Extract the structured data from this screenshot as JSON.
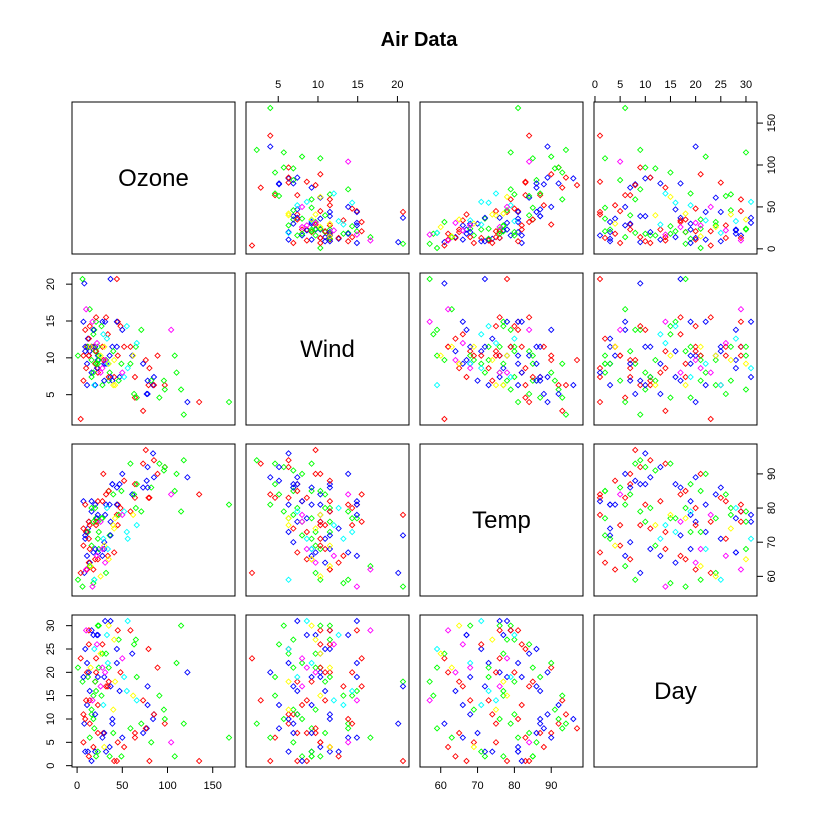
{
  "chart_data": {
    "type": "scatter",
    "title": "Air Data",
    "variables": [
      "Ozone",
      "Wind",
      "Temp",
      "Day"
    ],
    "ranges": {
      "Ozone": [
        1,
        168
      ],
      "Wind": [
        1.7,
        20.7
      ],
      "Temp": [
        56,
        97
      ],
      "Day": [
        1,
        31
      ]
    },
    "ticks": {
      "Ozone": [
        0,
        50,
        100,
        150
      ],
      "Wind": [
        5,
        10,
        15,
        20
      ],
      "Temp": [
        60,
        70,
        80,
        90
      ],
      "Day": [
        0,
        5,
        10,
        15,
        20,
        25,
        30
      ]
    },
    "colors": [
      "#FF0000",
      "#FFFF00",
      "#00FF00",
      "#00FFFF",
      "#0000FF",
      "#FF00FF"
    ],
    "grid": false,
    "legend": "none",
    "marker": "diamond",
    "observations": [
      [
        41,
        7.4,
        67,
        1,
        0
      ],
      [
        36,
        8,
        72,
        2,
        2
      ],
      [
        12,
        12.6,
        74,
        3,
        4
      ],
      [
        18,
        11.5,
        62,
        4,
        0
      ],
      [
        28,
        14.9,
        66,
        6,
        4
      ],
      [
        23,
        8.6,
        65,
        7,
        0
      ],
      [
        19,
        13.8,
        59,
        8,
        2
      ],
      [
        8,
        20.1,
        61,
        9,
        4
      ],
      [
        7,
        6.9,
        74,
        11,
        0
      ],
      [
        16,
        9.7,
        69,
        12,
        2
      ],
      [
        11,
        9.2,
        66,
        13,
        4
      ],
      [
        14,
        10.9,
        68,
        14,
        0
      ],
      [
        18,
        13.2,
        58,
        15,
        2
      ],
      [
        14,
        10.9,
        64,
        16,
        4
      ],
      [
        34,
        13.2,
        66,
        17,
        0
      ],
      [
        6,
        20.7,
        57,
        18,
        2
      ],
      [
        30,
        9.2,
        68,
        19,
        4
      ],
      [
        11,
        11.5,
        62,
        20,
        0
      ],
      [
        1,
        10.3,
        59,
        21,
        2
      ],
      [
        11,
        6.3,
        73,
        22,
        4
      ],
      [
        4,
        1.7,
        61,
        23,
        0
      ],
      [
        32,
        9.7,
        61,
        24,
        2
      ],
      [
        23,
        9.7,
        67,
        28,
        4
      ],
      [
        45,
        14.9,
        81,
        29,
        0
      ],
      [
        115,
        5.7,
        79,
        30,
        2
      ],
      [
        37,
        7.4,
        76,
        31,
        4
      ],
      [
        29,
        9.7,
        90,
        7,
        0
      ],
      [
        71,
        13.8,
        79,
        9,
        2
      ],
      [
        39,
        11.5,
        87,
        10,
        4
      ],
      [
        23,
        8,
        82,
        13,
        0
      ],
      [
        21,
        14.9,
        77,
        16,
        2
      ],
      [
        37,
        20.7,
        72,
        17,
        4
      ],
      [
        20,
        9.2,
        65,
        18,
        0
      ],
      [
        12,
        11.5,
        73,
        19,
        2
      ],
      [
        13,
        10.3,
        76,
        20,
        4
      ],
      [
        135,
        4,
        84,
        1,
        0
      ],
      [
        49,
        9.2,
        85,
        2,
        2
      ],
      [
        32,
        9.2,
        81,
        3,
        4
      ],
      [
        64,
        4.6,
        83,
        6,
        0
      ],
      [
        40,
        10.9,
        84,
        7,
        2
      ],
      [
        77,
        5.1,
        88,
        8,
        4
      ],
      [
        97,
        6.3,
        92,
        9,
        0
      ],
      [
        97,
        5.7,
        92,
        10,
        2
      ],
      [
        85,
        7.4,
        89,
        11,
        4
      ],
      [
        10,
        8.6,
        73,
        14,
        0
      ],
      [
        27,
        14.3,
        77,
        15,
        2
      ],
      [
        7,
        14.9,
        82,
        19,
        4
      ],
      [
        48,
        14.3,
        80,
        20,
        0
      ],
      [
        35,
        6.9,
        85,
        21,
        2
      ],
      [
        61,
        10.3,
        84,
        24,
        4
      ],
      [
        79,
        6.3,
        83,
        25,
        0
      ],
      [
        63,
        5.1,
        84,
        26,
        2
      ],
      [
        16,
        11.5,
        79,
        29,
        4
      ],
      [
        80,
        8.6,
        83,
        1,
        0
      ],
      [
        108,
        10.3,
        85,
        2,
        2
      ],
      [
        20,
        6.3,
        81,
        3,
        4
      ],
      [
        52,
        11.5,
        88,
        4,
        0
      ],
      [
        82,
        6.9,
        86,
        5,
        2
      ],
      [
        50,
        13.8,
        90,
        6,
        4
      ],
      [
        64,
        7.4,
        87,
        7,
        0
      ],
      [
        59,
        9.2,
        93,
        8,
        2
      ],
      [
        39,
        6.9,
        87,
        9,
        4
      ],
      [
        9,
        13.8,
        81,
        10,
        0
      ],
      [
        16,
        7.4,
        80,
        11,
        2
      ],
      [
        78,
        6.9,
        86,
        17,
        4
      ],
      [
        35,
        7.4,
        85,
        18,
        0
      ],
      [
        66,
        4.6,
        87,
        19,
        2
      ],
      [
        122,
        4,
        89,
        20,
        4
      ],
      [
        89,
        10.3,
        90,
        21,
        0
      ],
      [
        110,
        8,
        90,
        22,
        2
      ],
      [
        44,
        11.5,
        86,
        25,
        4
      ],
      [
        28,
        11.5,
        82,
        26,
        0
      ],
      [
        65,
        11.5,
        80,
        27,
        2
      ],
      [
        22,
        8.6,
        77,
        28,
        4
      ],
      [
        59,
        11.5,
        79,
        29,
        0
      ],
      [
        23,
        11.5,
        76,
        30,
        2
      ],
      [
        31,
        14.9,
        78,
        31,
        4
      ],
      [
        44,
        20.7,
        78,
        1,
        0
      ],
      [
        21,
        9.2,
        77,
        2,
        2
      ],
      [
        9,
        11.5,
        72,
        3,
        4
      ],
      [
        45,
        10.3,
        75,
        5,
        0
      ],
      [
        168,
        4,
        81,
        6,
        2
      ],
      [
        73,
        9.2,
        86,
        7,
        4
      ],
      [
        76,
        9.7,
        97,
        8,
        0
      ],
      [
        118,
        2.3,
        94,
        9,
        2
      ],
      [
        84,
        6.3,
        96,
        10,
        4
      ],
      [
        85,
        6.3,
        94,
        11,
        0
      ],
      [
        96,
        6.9,
        91,
        12,
        2
      ],
      [
        78,
        5.1,
        92,
        13,
        4
      ],
      [
        73,
        2.8,
        93,
        14,
        0
      ],
      [
        91,
        4.6,
        93,
        15,
        2
      ],
      [
        47,
        7.4,
        87,
        16,
        4
      ],
      [
        32,
        15.5,
        84,
        17,
        0
      ],
      [
        20,
        10.9,
        80,
        18,
        2
      ],
      [
        23,
        10.3,
        78,
        19,
        4
      ],
      [
        21,
        10.9,
        75,
        20,
        0
      ],
      [
        24,
        9.7,
        73,
        21,
        2
      ],
      [
        44,
        14.9,
        81,
        22,
        4
      ],
      [
        21,
        15.5,
        76,
        23,
        0
      ],
      [
        28,
        6.3,
        77,
        24,
        2
      ],
      [
        9,
        10.9,
        71,
        25,
        4
      ],
      [
        13,
        10.3,
        71,
        26,
        0
      ],
      [
        46,
        6.9,
        78,
        27,
        2
      ],
      [
        18,
        13.8,
        67,
        28,
        4
      ],
      [
        13,
        10.3,
        76,
        29,
        0
      ],
      [
        24,
        10.3,
        68,
        30,
        2
      ],
      [
        16,
        8,
        82,
        1,
        4
      ],
      [
        13,
        12.6,
        64,
        2,
        0
      ],
      [
        23,
        9.2,
        71,
        3,
        2
      ],
      [
        36,
        10.3,
        81,
        4,
        4
      ],
      [
        7,
        10.3,
        69,
        5,
        0
      ],
      [
        14,
        16.6,
        63,
        6,
        2
      ],
      [
        30,
        6.9,
        70,
        7,
        4
      ],
      [
        14,
        14.3,
        75,
        9,
        0
      ],
      [
        18,
        8,
        76,
        10,
        2
      ],
      [
        20,
        11.5,
        68,
        11,
        4
      ],
      [
        40,
        6.3,
        75,
        12,
        1
      ],
      [
        29,
        13.2,
        71,
        13,
        3
      ],
      [
        17,
        14.9,
        57,
        14,
        5
      ],
      [
        62,
        10.3,
        78,
        15,
        1
      ],
      [
        55,
        14.3,
        73,
        16,
        3
      ],
      [
        26,
        8,
        76,
        17,
        5
      ],
      [
        42,
        6.3,
        77,
        18,
        1
      ],
      [
        52,
        7.4,
        79,
        19,
        3
      ],
      [
        31,
        9.7,
        64,
        20,
        5
      ],
      [
        15,
        11.5,
        63,
        21,
        1
      ],
      [
        34,
        9.2,
        68,
        22,
        3
      ],
      [
        50,
        8,
        78,
        23,
        5
      ],
      [
        26,
        10.3,
        60,
        24,
        1
      ],
      [
        19,
        6.3,
        59,
        25,
        3
      ],
      [
        22,
        12,
        66,
        26,
        5
      ],
      [
        41,
        9.7,
        74,
        27,
        1
      ],
      [
        33,
        12.6,
        80,
        28,
        3
      ],
      [
        10,
        16.6,
        62,
        29,
        5
      ],
      [
        35,
        9.2,
        65,
        30,
        1
      ],
      [
        56,
        8.6,
        71,
        31,
        3
      ],
      [
        104,
        13.8,
        84,
        5,
        5
      ],
      [
        30,
        11.5,
        69,
        4,
        1
      ],
      [
        66,
        12,
        75,
        14,
        3
      ],
      [
        28,
        8.6,
        68,
        21,
        5
      ]
    ]
  }
}
